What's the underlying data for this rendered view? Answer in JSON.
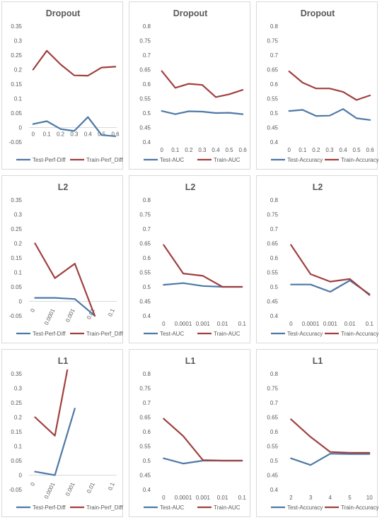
{
  "colors": {
    "test": "#4e79a7",
    "train": "#a0403f"
  },
  "chart_data": [
    {
      "type": "line",
      "title": "Dropout",
      "categories": [
        "0",
        "0.1",
        "0.2",
        "0.3",
        "0.4",
        "0.5",
        "0.6"
      ],
      "series": [
        {
          "name": "Test-Perf-Diff",
          "values": [
            0.012,
            0.022,
            -0.005,
            -0.012,
            0.036,
            -0.026,
            -0.03
          ]
        },
        {
          "name": "Train-Perf_Diff",
          "values": [
            0.2,
            0.265,
            0.218,
            0.18,
            0.179,
            0.207,
            0.21
          ]
        }
      ],
      "ylim": [
        -0.05,
        0.35
      ],
      "yticks": [
        "-0.05",
        "0",
        "0.05",
        "0.1",
        "0.15",
        "0.2",
        "0.25",
        "0.3",
        "0.35"
      ],
      "legend": "bottom",
      "grid": false
    },
    {
      "type": "line",
      "title": "Dropout",
      "categories": [
        "0",
        "0.1",
        "0.2",
        "0.3",
        "0.4",
        "0.5",
        "0.6"
      ],
      "series": [
        {
          "name": "Test-AUC",
          "values": [
            0.507,
            0.496,
            0.506,
            0.505,
            0.5,
            0.501,
            0.496
          ]
        },
        {
          "name": "Train-AUC",
          "values": [
            0.645,
            0.587,
            0.601,
            0.597,
            0.555,
            0.565,
            0.58
          ]
        }
      ],
      "ylim": [
        0.4,
        0.8
      ],
      "yticks": [
        "0.4",
        "0.45",
        "0.5",
        "0.55",
        "0.6",
        "0.65",
        "0.7",
        "0.75",
        "0.8"
      ],
      "legend": "bottom",
      "grid": false
    },
    {
      "type": "line",
      "title": "Dropout",
      "categories": [
        "0",
        "0.1",
        "0.2",
        "0.3",
        "0.4",
        "0.5",
        "0.6"
      ],
      "series": [
        {
          "name": "Test-Accuracy",
          "values": [
            0.507,
            0.511,
            0.49,
            0.491,
            0.514,
            0.482,
            0.476
          ]
        },
        {
          "name": "Train-Accuracy",
          "values": [
            0.644,
            0.605,
            0.585,
            0.585,
            0.573,
            0.545,
            0.561
          ]
        }
      ],
      "ylim": [
        0.4,
        0.8
      ],
      "yticks": [
        "0.4",
        "0.45",
        "0.5",
        "0.55",
        "0.6",
        "0.65",
        "0.7",
        "0.75",
        "0.8"
      ],
      "legend": "bottom",
      "grid": false
    },
    {
      "type": "line",
      "title": "L2",
      "categories": [
        "0",
        "0.0001",
        "0.001",
        "0.01",
        "0.1"
      ],
      "series": [
        {
          "name": "Test-Perf-Diff",
          "values": [
            0.012,
            0.012,
            0.008,
            -0.05,
            null
          ]
        },
        {
          "name": "Train-Perf_Diff",
          "values": [
            0.2,
            0.08,
            0.13,
            -0.05,
            null
          ]
        }
      ],
      "ylim": [
        -0.05,
        0.35
      ],
      "yticks": [
        "-0.05",
        "0",
        "0.05",
        "0.1",
        "0.15",
        "0.2",
        "0.25",
        "0.3",
        "0.35"
      ],
      "legend": "bottom",
      "grid": false
    },
    {
      "type": "line",
      "title": "L2",
      "categories": [
        "0",
        "0.0001",
        "0.001",
        "0.01",
        "0.1"
      ],
      "series": [
        {
          "name": "Test-AUC",
          "values": [
            0.507,
            0.513,
            0.503,
            0.5,
            0.5
          ]
        },
        {
          "name": "Train-AUC",
          "values": [
            0.645,
            0.546,
            0.538,
            0.5,
            0.5
          ]
        }
      ],
      "ylim": [
        0.4,
        0.8
      ],
      "yticks": [
        "0.4",
        "0.45",
        "0.5",
        "0.55",
        "0.6",
        "0.65",
        "0.7",
        "0.75",
        "0.8"
      ],
      "legend": "bottom",
      "grid": false
    },
    {
      "type": "line",
      "title": "L2",
      "categories": [
        "0",
        "0.0001",
        "0.001",
        "0.01",
        "0.1"
      ],
      "series": [
        {
          "name": "Test-Accuracy",
          "values": [
            0.508,
            0.508,
            0.483,
            0.522,
            0.475
          ]
        },
        {
          "name": "Train-Accuracy",
          "values": [
            0.645,
            0.544,
            0.518,
            0.527,
            0.472
          ]
        }
      ],
      "ylim": [
        0.4,
        0.8
      ],
      "yticks": [
        "0.4",
        "0.45",
        "0.5",
        "0.55",
        "0.6",
        "0.65",
        "0.7",
        "0.75",
        "0.8"
      ],
      "legend": "bottom",
      "grid": false
    },
    {
      "type": "line",
      "title": "L1",
      "categories": [
        "0",
        "0.0001",
        "0.001",
        "0.01",
        "0.1"
      ],
      "series": [
        {
          "name": "Test-Perf-Diff",
          "values": [
            0.012,
            0.0,
            0.23,
            null,
            null
          ]
        },
        {
          "name": "Train-Perf_Diff",
          "values": [
            0.2,
            0.136,
            0.5,
            null,
            null
          ]
        }
      ],
      "ylim": [
        -0.05,
        0.35
      ],
      "yticks": [
        "-0.05",
        "0",
        "0.05",
        "0.1",
        "0.15",
        "0.2",
        "0.25",
        "0.3",
        "0.35"
      ],
      "legend": "bottom",
      "grid": false
    },
    {
      "type": "line",
      "title": "L1",
      "categories": [
        "0",
        "0.0001",
        "0.001",
        "0.01",
        "0.1"
      ],
      "series": [
        {
          "name": "Test-AUC",
          "values": [
            0.508,
            0.49,
            0.5,
            0.5,
            0.5
          ]
        },
        {
          "name": "Train-AUC",
          "values": [
            0.645,
            0.585,
            0.502,
            0.5,
            0.5
          ]
        }
      ],
      "ylim": [
        0.4,
        0.8
      ],
      "yticks": [
        "0.4",
        "0.45",
        "0.5",
        "0.55",
        "0.6",
        "0.65",
        "0.7",
        "0.75",
        "0.8"
      ],
      "legend": "bottom",
      "grid": false
    },
    {
      "type": "line",
      "title": "L1",
      "categories": [
        "2",
        "3",
        "4",
        "5",
        "10"
      ],
      "series": [
        {
          "name": "Test-Accuracy",
          "values": [
            0.508,
            0.485,
            0.524,
            0.523,
            0.523
          ]
        },
        {
          "name": "Train-Accuracy",
          "values": [
            0.643,
            0.582,
            0.53,
            0.527,
            0.527
          ]
        }
      ],
      "ylim": [
        0.4,
        0.8
      ],
      "yticks": [
        "0.4",
        "0.45",
        "0.5",
        "0.55",
        "0.6",
        "0.65",
        "0.7",
        "0.75",
        "0.8"
      ],
      "legend": "bottom",
      "grid": false
    }
  ]
}
